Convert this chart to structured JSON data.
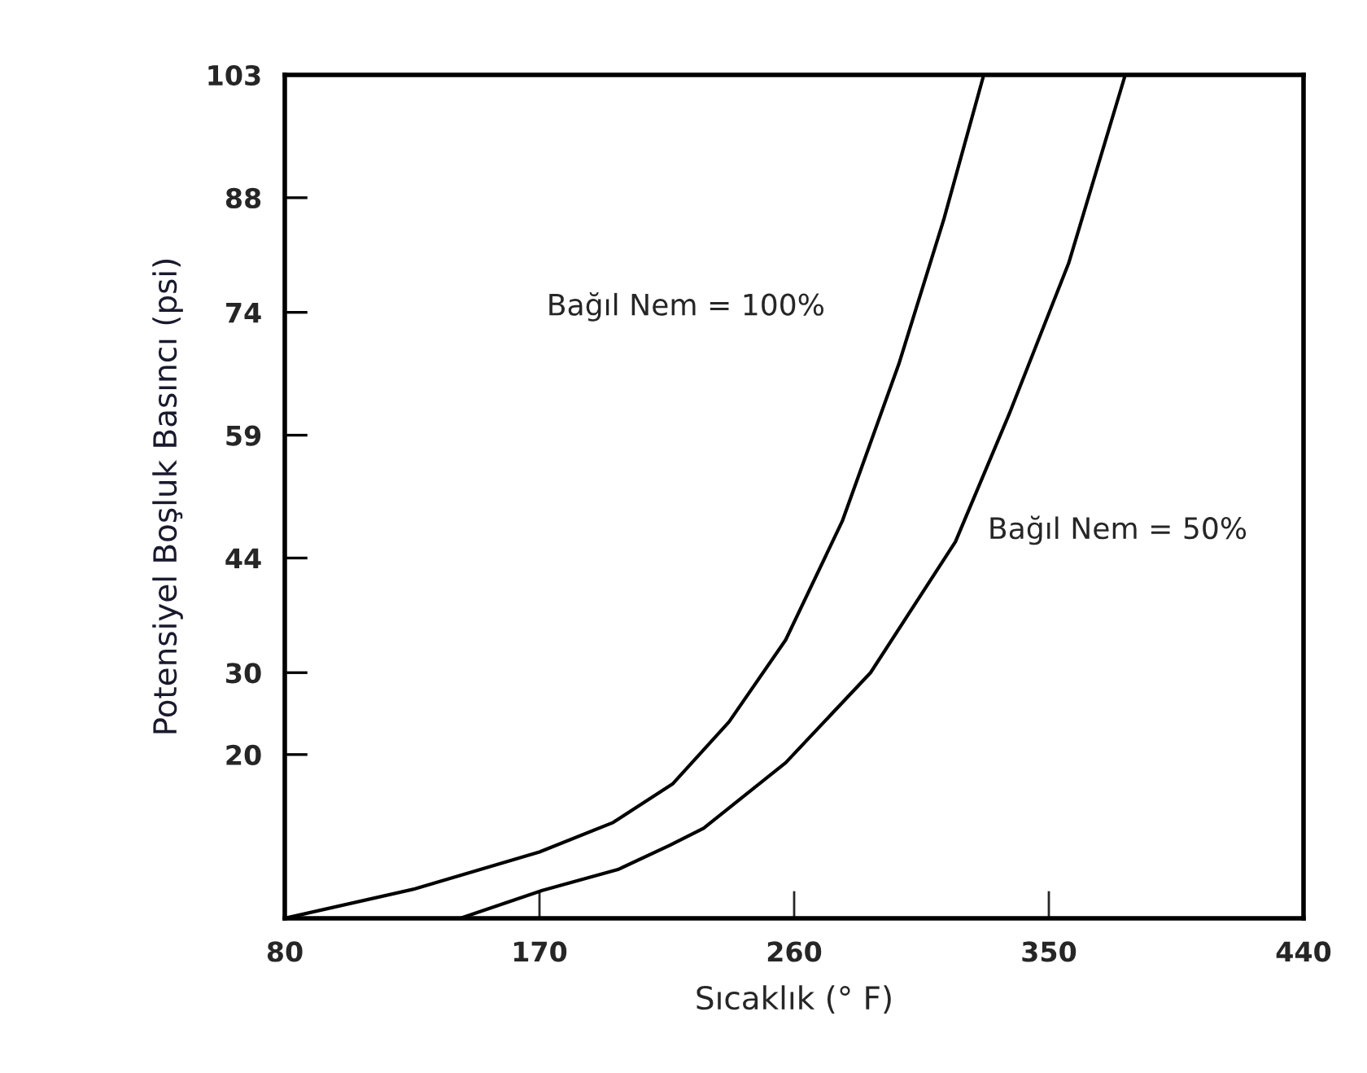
{
  "chart_data": {
    "type": "line",
    "xlabel": "Sıcaklık (° F)",
    "ylabel": "Potensiyel Boşluk Basıncı (psi)",
    "xlim": [
      80,
      440
    ],
    "ylim": [
      0,
      103
    ],
    "xticks": [
      80,
      170,
      260,
      350,
      440
    ],
    "yticks": [
      20,
      30,
      44,
      59,
      74,
      88,
      103
    ],
    "grid": false,
    "legend": false,
    "marker": "none",
    "line_style": "solid",
    "series": [
      {
        "color": "#000000",
        "x": [
          80,
          126,
          170,
          196,
          217,
          237,
          257,
          277,
          297,
          313,
          327
        ],
        "values": [
          0,
          3.6,
          8.1,
          11.7,
          16.4,
          24,
          34,
          48.5,
          67.7,
          85.5,
          103
        ]
      },
      {
        "color": "#000000",
        "x": [
          142,
          171,
          198,
          216,
          228,
          257,
          287,
          317,
          336,
          357,
          377
        ],
        "values": [
          0,
          3.4,
          6,
          8.9,
          11,
          19,
          30,
          46,
          61.6,
          80,
          103
        ]
      }
    ],
    "annotations": [
      "Bağıl Nem = 100%",
      "Bağıl Nem = 50%"
    ]
  }
}
